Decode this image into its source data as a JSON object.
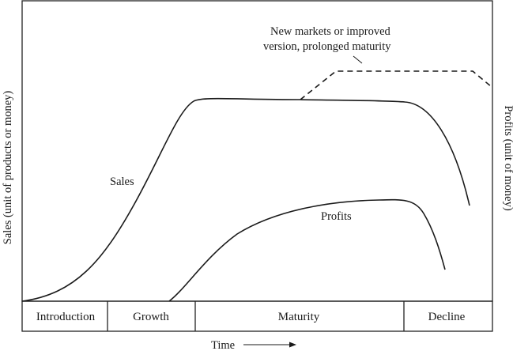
{
  "y_axis_left": "Sales (unit of products or money)",
  "y_axis_right": "Profits (unit of money)",
  "x_axis": "Time",
  "curves": {
    "sales": "Sales",
    "profits": "Profits",
    "extension": [
      "New markets or improved",
      "version, prolonged maturity"
    ]
  },
  "stages": [
    "Introduction",
    "Growth",
    "Maturity",
    "Decline"
  ]
}
